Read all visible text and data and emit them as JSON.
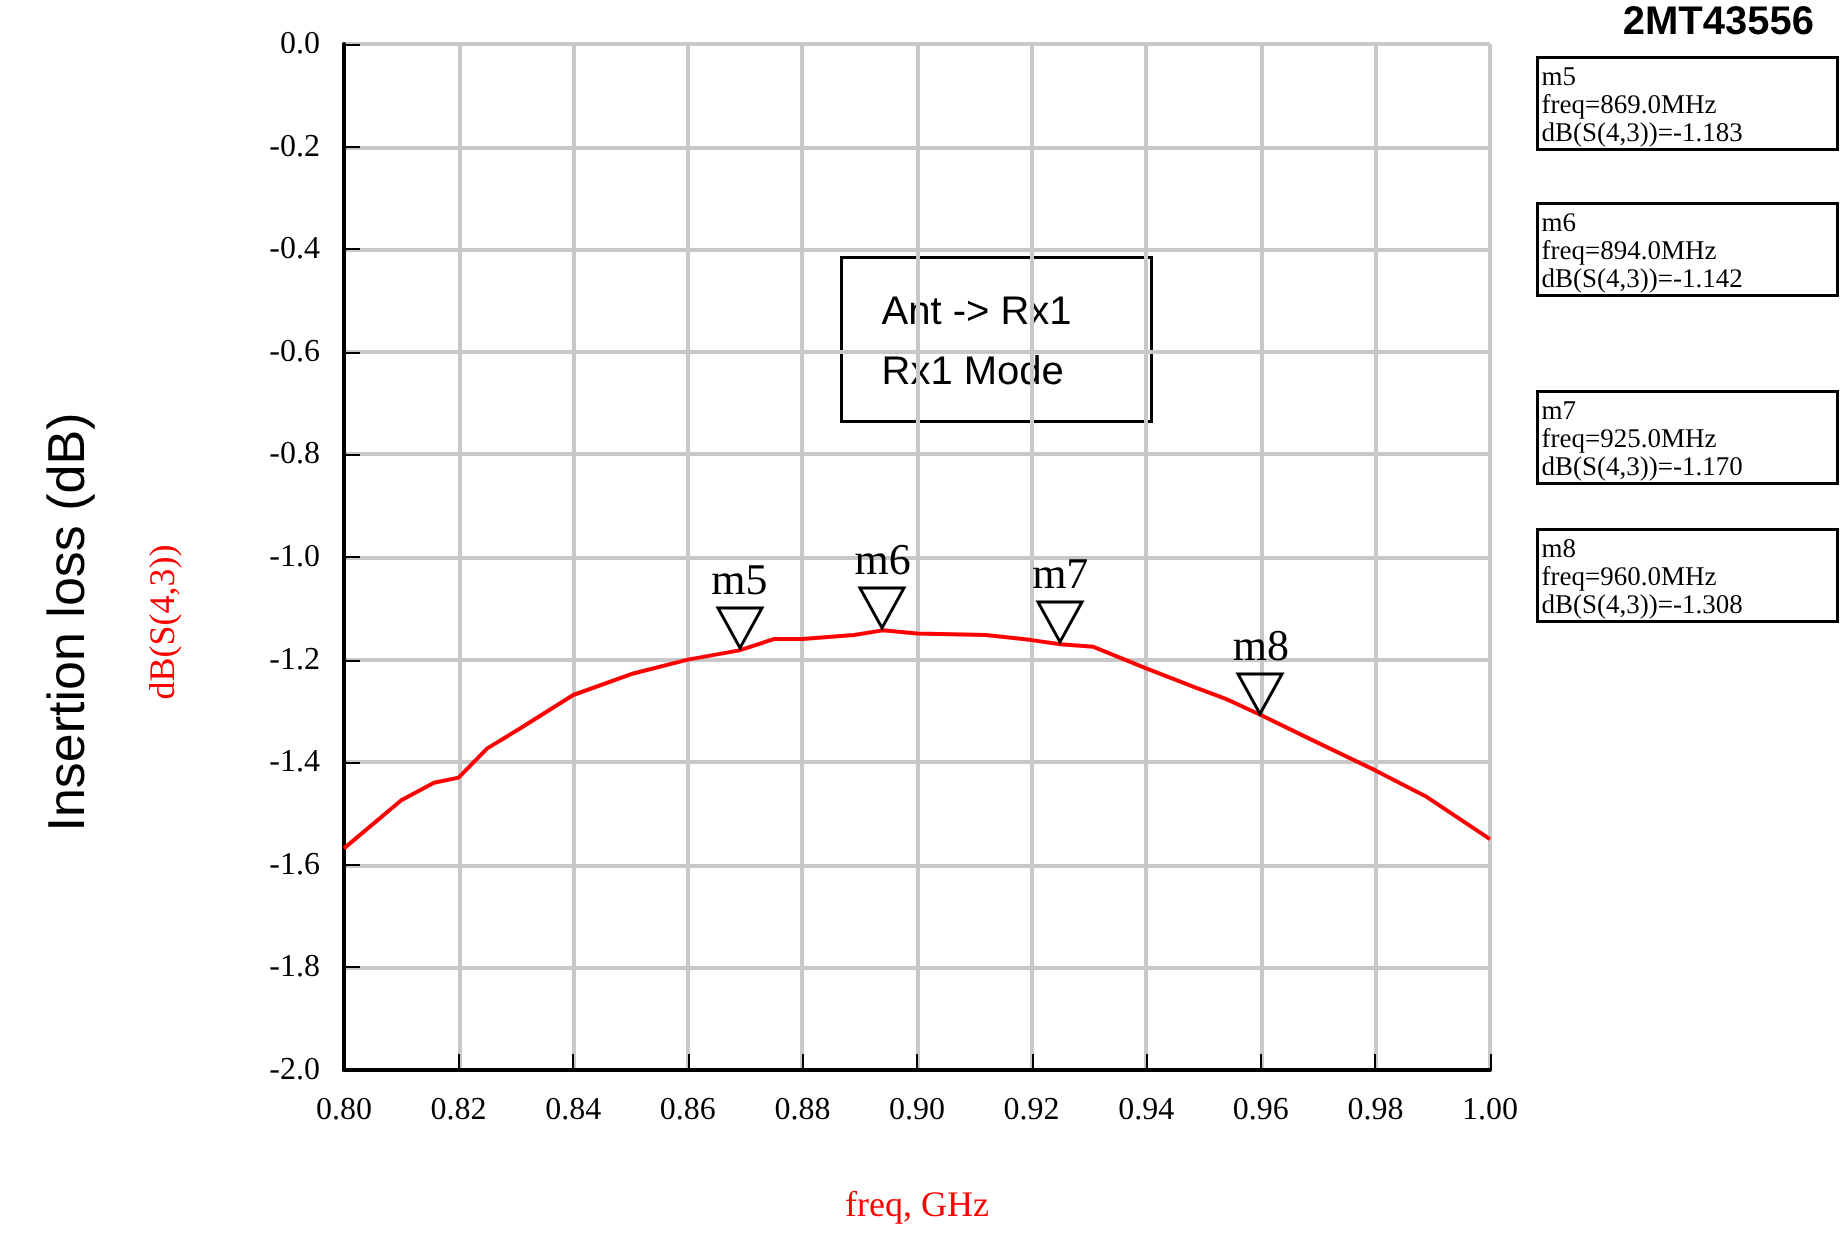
{
  "chart_data": {
    "type": "line",
    "title": "2MT43556",
    "xlabel": "freq, GHz",
    "ylabel": "Insertion loss (dB)",
    "annotations": [
      "Ant -> Rx1\nRx1 Mode",
      "dB(S(4,3))",
      "m5\nfreq=869.0MHz\ndB(S(4,3))=-1.183",
      "m6\nfreq=894.0MHz\ndB(S(4,3))=-1.142",
      "m7\nfreq=925.0MHz\ndB(S(4,3))=-1.170",
      "m8\nfreq=960.0MHz\ndB(S(4,3))=-1.308",
      {
        "text": "m5",
        "x": 0.869,
        "y": -1.183
      },
      {
        "text": "m6",
        "x": 0.894,
        "y": -1.142
      },
      {
        "text": "m7",
        "x": 0.925,
        "y": -1.17
      },
      {
        "text": "m8",
        "x": 0.96,
        "y": -1.308
      }
    ],
    "series": [
      {
        "color": "#ff0000",
        "x": [
          0.8,
          0.81,
          0.8157,
          0.82,
          0.825,
          0.8312,
          0.84,
          0.8505,
          0.86,
          0.869,
          0.875,
          0.88,
          0.889,
          0.894,
          0.9,
          0.912,
          0.92,
          0.925,
          0.9308,
          0.94,
          0.9483,
          0.954,
          0.96,
          0.969,
          0.98,
          0.989,
          1.0
        ],
        "values": [
          -1.568,
          -1.474,
          -1.44,
          -1.43,
          -1.373,
          -1.331,
          -1.269,
          -1.227,
          -1.2,
          -1.182,
          -1.16,
          -1.16,
          -1.152,
          -1.143,
          -1.149,
          -1.152,
          -1.162,
          -1.17,
          -1.175,
          -1.217,
          -1.253,
          -1.277,
          -1.308,
          -1.357,
          -1.416,
          -1.468,
          -1.55
        ]
      }
    ],
    "xlim": [
      0.8,
      1.0
    ],
    "ylim": [
      -2.0,
      0.0
    ],
    "xticks": [
      {
        "value": 0.8,
        "label": "0.80"
      },
      {
        "value": 0.82,
        "label": "0.82"
      },
      {
        "value": 0.84,
        "label": "0.84"
      },
      {
        "value": 0.86,
        "label": "0.86"
      },
      {
        "value": 0.88,
        "label": "0.88"
      },
      {
        "value": 0.9,
        "label": "0.90"
      },
      {
        "value": 0.92,
        "label": "0.92"
      },
      {
        "value": 0.94,
        "label": "0.94"
      },
      {
        "value": 0.96,
        "label": "0.96"
      },
      {
        "value": 0.98,
        "label": "0.98"
      },
      {
        "value": 1.0,
        "label": "1.00"
      }
    ],
    "yticks": [
      {
        "value": 0.0,
        "label": "0.0"
      },
      {
        "value": -0.2,
        "label": "-0.2"
      },
      {
        "value": -0.4,
        "label": "-0.4"
      },
      {
        "value": -0.6,
        "label": "-0.6"
      },
      {
        "value": -0.8,
        "label": "-0.8"
      },
      {
        "value": -1.0,
        "label": "-1.0"
      },
      {
        "value": -1.2,
        "label": "-1.2"
      },
      {
        "value": -1.4,
        "label": "-1.4"
      },
      {
        "value": -1.6,
        "label": "-1.6"
      },
      {
        "value": -1.8,
        "label": "-1.8"
      },
      {
        "value": -2.0,
        "label": "-2.0"
      }
    ],
    "grid": true,
    "marker": "none",
    "line_style": "solid"
  }
}
